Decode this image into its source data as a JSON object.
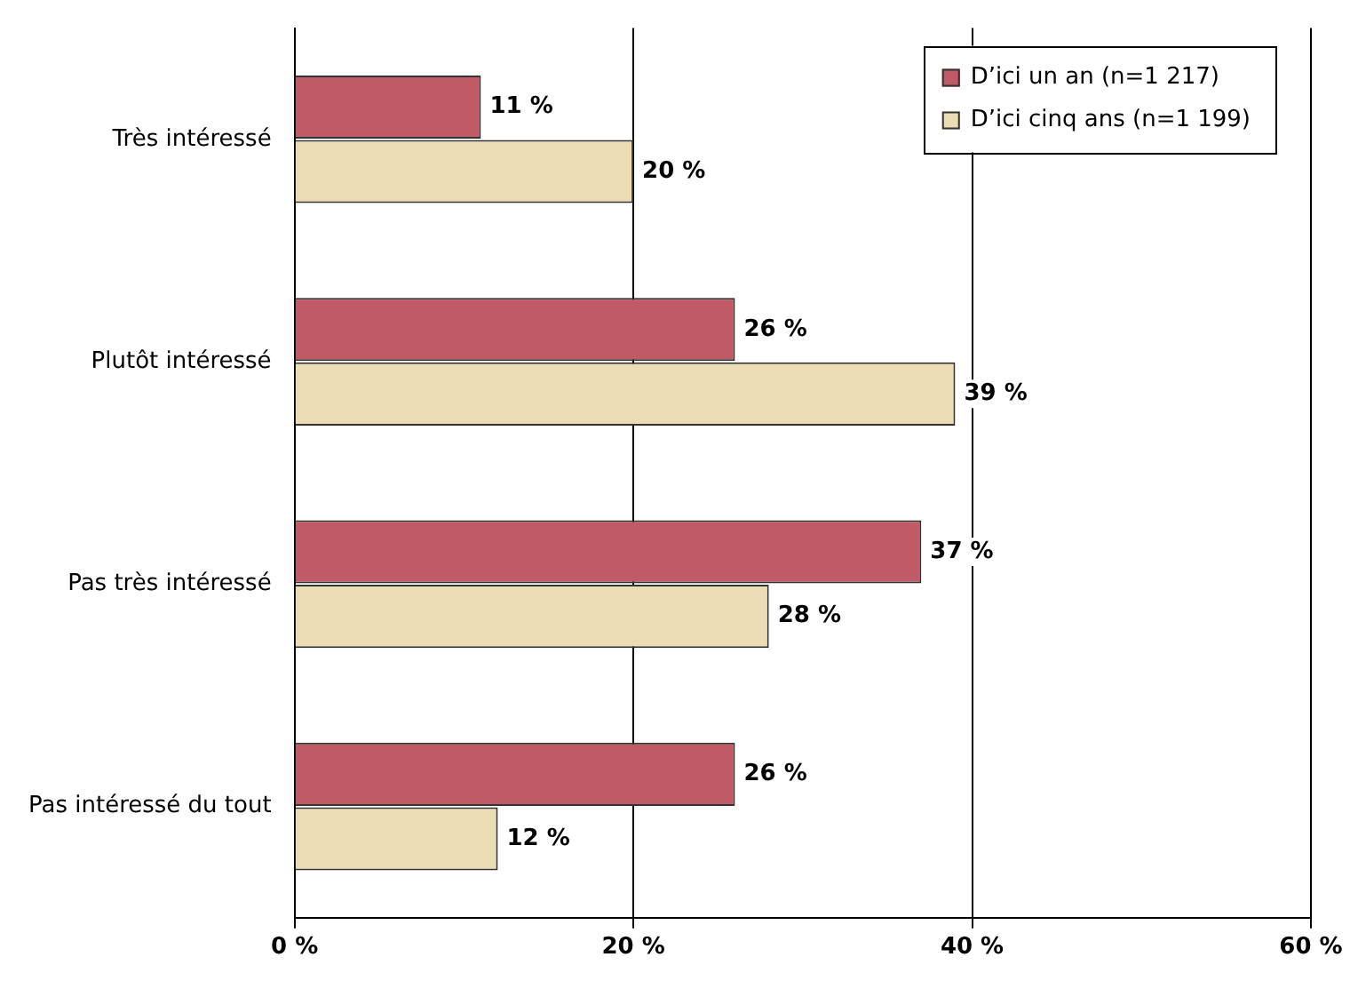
{
  "chart_data": {
    "type": "bar",
    "orientation": "horizontal",
    "categories": [
      "Très intéressé",
      "Plutôt intéressé",
      "Pas très intéressé",
      "Pas intéressé du tout"
    ],
    "series": [
      {
        "name": "D’ici un an (n=1 217)",
        "color": "#c05a66",
        "values": [
          11,
          26,
          37,
          26
        ],
        "value_labels": [
          "11 %",
          "26 %",
          "37 %",
          "26 %"
        ]
      },
      {
        "name": "D’ici cinq ans (n=1 199)",
        "color": "#ecdcb4",
        "values": [
          20,
          39,
          28,
          12
        ],
        "value_labels": [
          "20 %",
          "39 %",
          "28 %",
          "12 %"
        ]
      }
    ],
    "xlim": [
      0,
      60
    ],
    "xticks": [
      {
        "value": 0,
        "label": "0 %"
      },
      {
        "value": 20,
        "label": "20 %"
      },
      {
        "value": 40,
        "label": "40 %"
      },
      {
        "value": 60,
        "label": "60 %"
      }
    ],
    "grid": "x",
    "legend": "top right"
  }
}
